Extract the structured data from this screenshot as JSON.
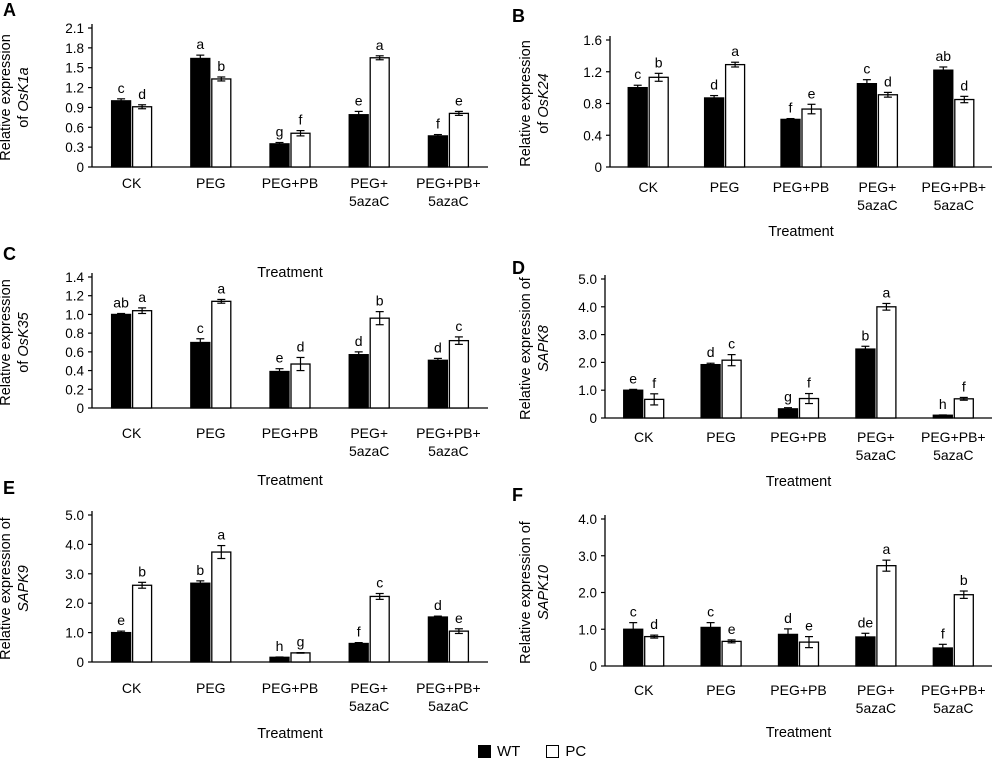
{
  "legend": {
    "wt_label": "WT",
    "pc_label": "PC",
    "wt_color": "#000000",
    "pc_color": "#ffffff"
  },
  "chart_data": [
    {
      "panel": "A",
      "type": "bar",
      "ylabel_prefix": "Relative expression",
      "ylabel_line2": "of ",
      "gene": "OsK1a",
      "xlabel": "Treatment",
      "categories": [
        "CK",
        "PEG",
        "PEG+PB",
        "PEG+\n5azaC",
        "PEG+PB+\n5azaC"
      ],
      "yticks": [
        "0",
        "0.3",
        "0.6",
        "0.9",
        "1.2",
        "1.5",
        "1.8",
        "2.1"
      ],
      "ylim": [
        0,
        2.1
      ],
      "series": [
        {
          "name": "WT",
          "values": [
            1.0,
            1.64,
            0.35,
            0.79,
            0.47
          ],
          "errors": [
            0.03,
            0.05,
            0.02,
            0.05,
            0.02
          ],
          "labels": [
            "c",
            "a",
            "g",
            "e",
            "f"
          ]
        },
        {
          "name": "PC",
          "values": [
            0.91,
            1.33,
            0.51,
            1.65,
            0.81
          ],
          "errors": [
            0.03,
            0.03,
            0.04,
            0.03,
            0.03
          ],
          "labels": [
            "d",
            "b",
            "f",
            "a",
            "e"
          ]
        }
      ]
    },
    {
      "panel": "B",
      "type": "bar",
      "ylabel_prefix": "Relative expression",
      "ylabel_line2": "of ",
      "gene": "OsK24",
      "xlabel": "Treatment",
      "categories": [
        "CK",
        "PEG",
        "PEG+PB",
        "PEG+\n5azaC",
        "PEG+PB+\n5azaC"
      ],
      "yticks": [
        "0",
        "0.4",
        "0.8",
        "1.2",
        "1.6"
      ],
      "ylim": [
        0,
        1.6
      ],
      "series": [
        {
          "name": "WT",
          "values": [
            1.0,
            0.87,
            0.6,
            1.05,
            1.22
          ],
          "errors": [
            0.03,
            0.03,
            0.01,
            0.05,
            0.04
          ],
          "labels": [
            "c",
            "d",
            "f",
            "c",
            "ab"
          ]
        },
        {
          "name": "PC",
          "values": [
            1.13,
            1.29,
            0.73,
            0.91,
            0.85
          ],
          "errors": [
            0.05,
            0.03,
            0.06,
            0.03,
            0.04
          ],
          "labels": [
            "b",
            "a",
            "e",
            "d",
            "d"
          ]
        }
      ]
    },
    {
      "panel": "C",
      "type": "bar",
      "ylabel_prefix": "Relative expression",
      "ylabel_line2": "of ",
      "gene": "OsK35",
      "xlabel": "Treatment",
      "categories": [
        "CK",
        "PEG",
        "PEG+PB",
        "PEG+\n5azaC",
        "PEG+PB+\n5azaC"
      ],
      "yticks": [
        "0",
        "0.2",
        "0.4",
        "0.6",
        "0.8",
        "1.0",
        "1.2",
        "1.4"
      ],
      "ylim": [
        0,
        1.4
      ],
      "series": [
        {
          "name": "WT",
          "values": [
            1.0,
            0.7,
            0.39,
            0.57,
            0.51
          ],
          "errors": [
            0.01,
            0.04,
            0.03,
            0.03,
            0.02
          ],
          "labels": [
            "ab",
            "c",
            "e",
            "d",
            "d"
          ]
        },
        {
          "name": "PC",
          "values": [
            1.04,
            1.14,
            0.47,
            0.96,
            0.72
          ],
          "errors": [
            0.03,
            0.02,
            0.07,
            0.07,
            0.04
          ],
          "labels": [
            "a",
            "a",
            "d",
            "b",
            "c"
          ]
        }
      ]
    },
    {
      "panel": "D",
      "type": "bar",
      "ylabel_prefix": "Relative expression of",
      "ylabel_line2": "",
      "gene": "SAPK8",
      "xlabel": "Treatment",
      "categories": [
        "CK",
        "PEG",
        "PEG+PB",
        "PEG+\n5azaC",
        "PEG+PB+\n5azaC"
      ],
      "yticks": [
        "0",
        "1.0",
        "2.0",
        "3.0",
        "4.0",
        "5.0"
      ],
      "ylim": [
        0,
        5
      ],
      "series": [
        {
          "name": "WT",
          "values": [
            1.0,
            1.92,
            0.33,
            2.48,
            0.1
          ],
          "errors": [
            0.03,
            0.05,
            0.04,
            0.1,
            0.01
          ],
          "labels": [
            "e",
            "d",
            "g",
            "b",
            "h"
          ]
        },
        {
          "name": "PC",
          "values": [
            0.67,
            2.08,
            0.7,
            4.0,
            0.69
          ],
          "errors": [
            0.2,
            0.2,
            0.18,
            0.12,
            0.05
          ],
          "labels": [
            "f",
            "c",
            "f",
            "a",
            "f"
          ]
        }
      ]
    },
    {
      "panel": "E",
      "type": "bar",
      "ylabel_prefix": "Relative expression of",
      "ylabel_line2": "",
      "gene": "SAPK9",
      "xlabel": "Treatment",
      "categories": [
        "CK",
        "PEG",
        "PEG+PB",
        "PEG+\n5azaC",
        "PEG+PB+\n5azaC"
      ],
      "yticks": [
        "0",
        "1.0",
        "2.0",
        "3.0",
        "4.0",
        "5.0"
      ],
      "ylim": [
        0,
        5
      ],
      "series": [
        {
          "name": "WT",
          "values": [
            1.0,
            2.68,
            0.16,
            0.63,
            1.53
          ],
          "errors": [
            0.05,
            0.08,
            0.01,
            0.03,
            0.03
          ],
          "labels": [
            "e",
            "b",
            "h",
            "f",
            "d"
          ]
        },
        {
          "name": "PC",
          "values": [
            2.61,
            3.74,
            0.31,
            2.23,
            1.05
          ],
          "errors": [
            0.1,
            0.22,
            0.01,
            0.1,
            0.08
          ],
          "labels": [
            "b",
            "a",
            "g",
            "c",
            "e"
          ]
        }
      ]
    },
    {
      "panel": "F",
      "type": "bar",
      "ylabel_prefix": "Relative expression of",
      "ylabel_line2": "",
      "gene": "SAPK10",
      "xlabel": "Treatment",
      "categories": [
        "CK",
        "PEG",
        "PEG+PB",
        "PEG+\n5azaC",
        "PEG+PB+\n5azaC"
      ],
      "yticks": [
        "0",
        "1.0",
        "2.0",
        "3.0",
        "4.0"
      ],
      "ylim": [
        0,
        4
      ],
      "series": [
        {
          "name": "WT",
          "values": [
            1.0,
            1.05,
            0.86,
            0.79,
            0.49
          ],
          "errors": [
            0.18,
            0.13,
            0.15,
            0.1,
            0.1
          ],
          "labels": [
            "c",
            "c",
            "d",
            "de",
            "f"
          ]
        },
        {
          "name": "PC",
          "values": [
            0.8,
            0.67,
            0.65,
            2.73,
            1.94
          ],
          "errors": [
            0.04,
            0.04,
            0.15,
            0.15,
            0.1
          ],
          "labels": [
            "d",
            "e",
            "e",
            "a",
            "b"
          ]
        }
      ]
    }
  ]
}
